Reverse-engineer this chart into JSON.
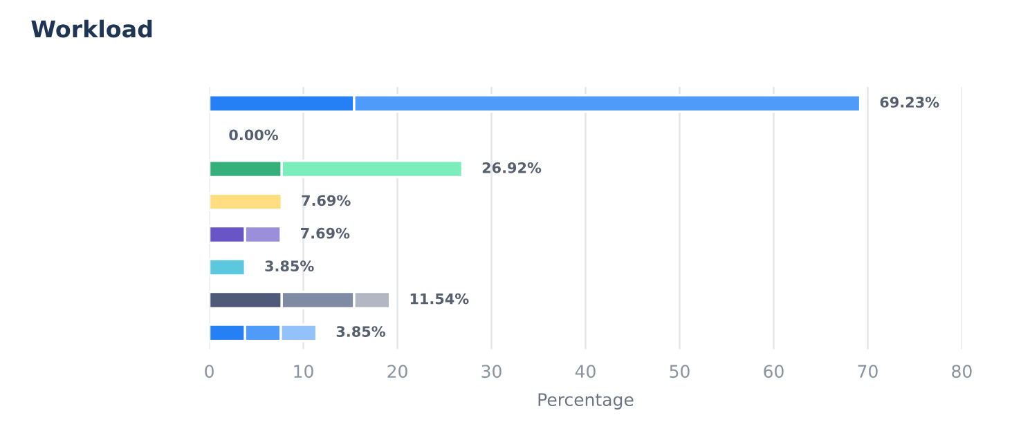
{
  "chart_data": {
    "type": "bar",
    "title": "Workload",
    "xlabel": "Percentage",
    "orientation": "horizontal",
    "stacked": true,
    "categories": [
      null,
      null,
      null,
      null,
      null,
      null,
      null,
      null
    ],
    "series": [
      {
        "colors": [
          "#2680f5",
          null,
          "#34b07a",
          "#ffdd80",
          "#6a55c6",
          "#5bc8e0",
          "#4e5a78",
          "#2680f5"
        ],
        "values": [
          15.4,
          0,
          7.7,
          7.7,
          3.8,
          3.8,
          7.7,
          3.8
        ]
      },
      {
        "colors": [
          "#4f9bfa",
          null,
          "#7ceebb",
          null,
          "#9b8fdc",
          null,
          "#7f8aa3",
          "#4f9bfa"
        ],
        "values": [
          53.8,
          null,
          19.2,
          null,
          3.8,
          null,
          7.7,
          3.8
        ]
      },
      {
        "colors": [
          null,
          null,
          null,
          null,
          null,
          null,
          "#b2b7c3",
          "#93c1fa"
        ],
        "values": [
          null,
          null,
          null,
          null,
          null,
          null,
          3.8,
          3.8
        ]
      }
    ],
    "value_labels": [
      "69.23%",
      "0.00%",
      "26.92%",
      "7.69%",
      "7.69%",
      "3.85%",
      "11.54%",
      "3.85%"
    ],
    "xlim": [
      0,
      80
    ],
    "xticks": [
      0,
      10,
      20,
      30,
      40,
      50,
      60,
      70,
      80
    ],
    "grid": "x"
  }
}
